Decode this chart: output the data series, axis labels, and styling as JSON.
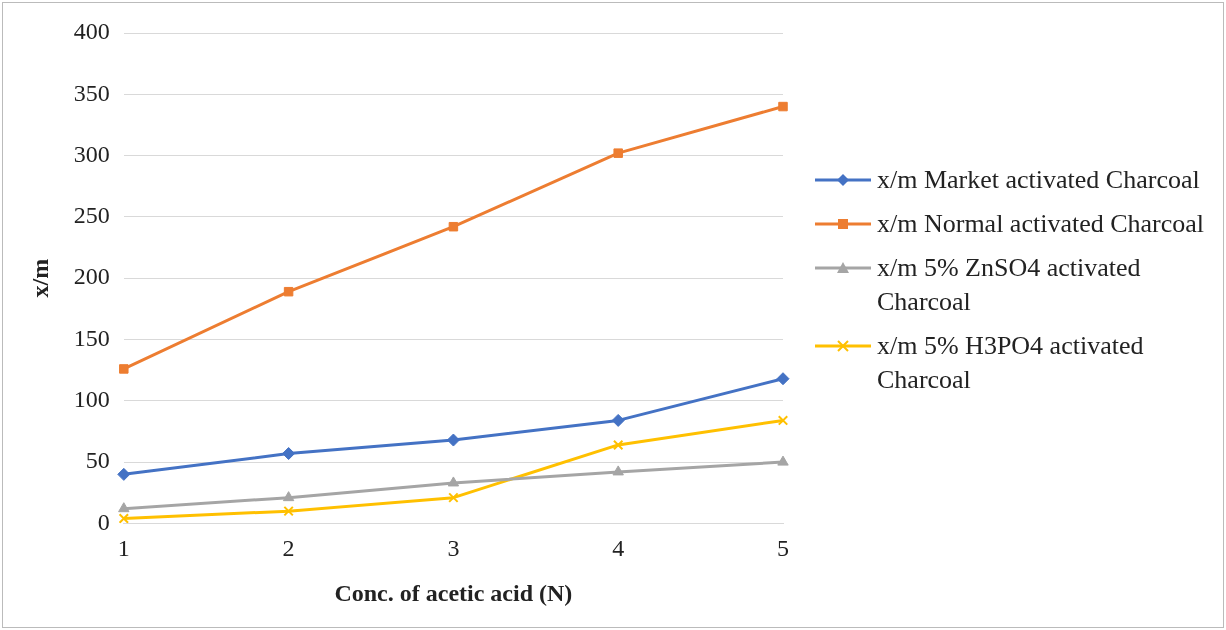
{
  "chart_data": {
    "type": "line",
    "xlabel": "Conc. of acetic acid (N)",
    "ylabel": "x/m",
    "categories": [
      "1",
      "2",
      "3",
      "4",
      "5"
    ],
    "ylim": [
      0,
      400
    ],
    "yticks": [
      0,
      50,
      100,
      150,
      200,
      250,
      300,
      350,
      400
    ],
    "grid": "y",
    "legend": "right",
    "line_style": "solid",
    "series": [
      {
        "name": "x/m Market activated Charcoal",
        "color": "#4472c4",
        "marker": "diamond",
        "values": [
          40,
          57,
          68,
          84,
          118
        ]
      },
      {
        "name": "x/m Normal activated Charcoal",
        "color": "#ed7d31",
        "marker": "square",
        "values": [
          126,
          189,
          242,
          302,
          340
        ]
      },
      {
        "name": "x/m 5% ZnSO4 activated Charcoal",
        "color": "#a5a5a5",
        "marker": "triangle",
        "values": [
          12,
          21,
          33,
          42,
          50
        ]
      },
      {
        "name": "x/m 5% H3PO4 activated Charcoal",
        "color": "#ffc000",
        "marker": "cross",
        "values": [
          4,
          10,
          21,
          64,
          84
        ]
      }
    ]
  }
}
